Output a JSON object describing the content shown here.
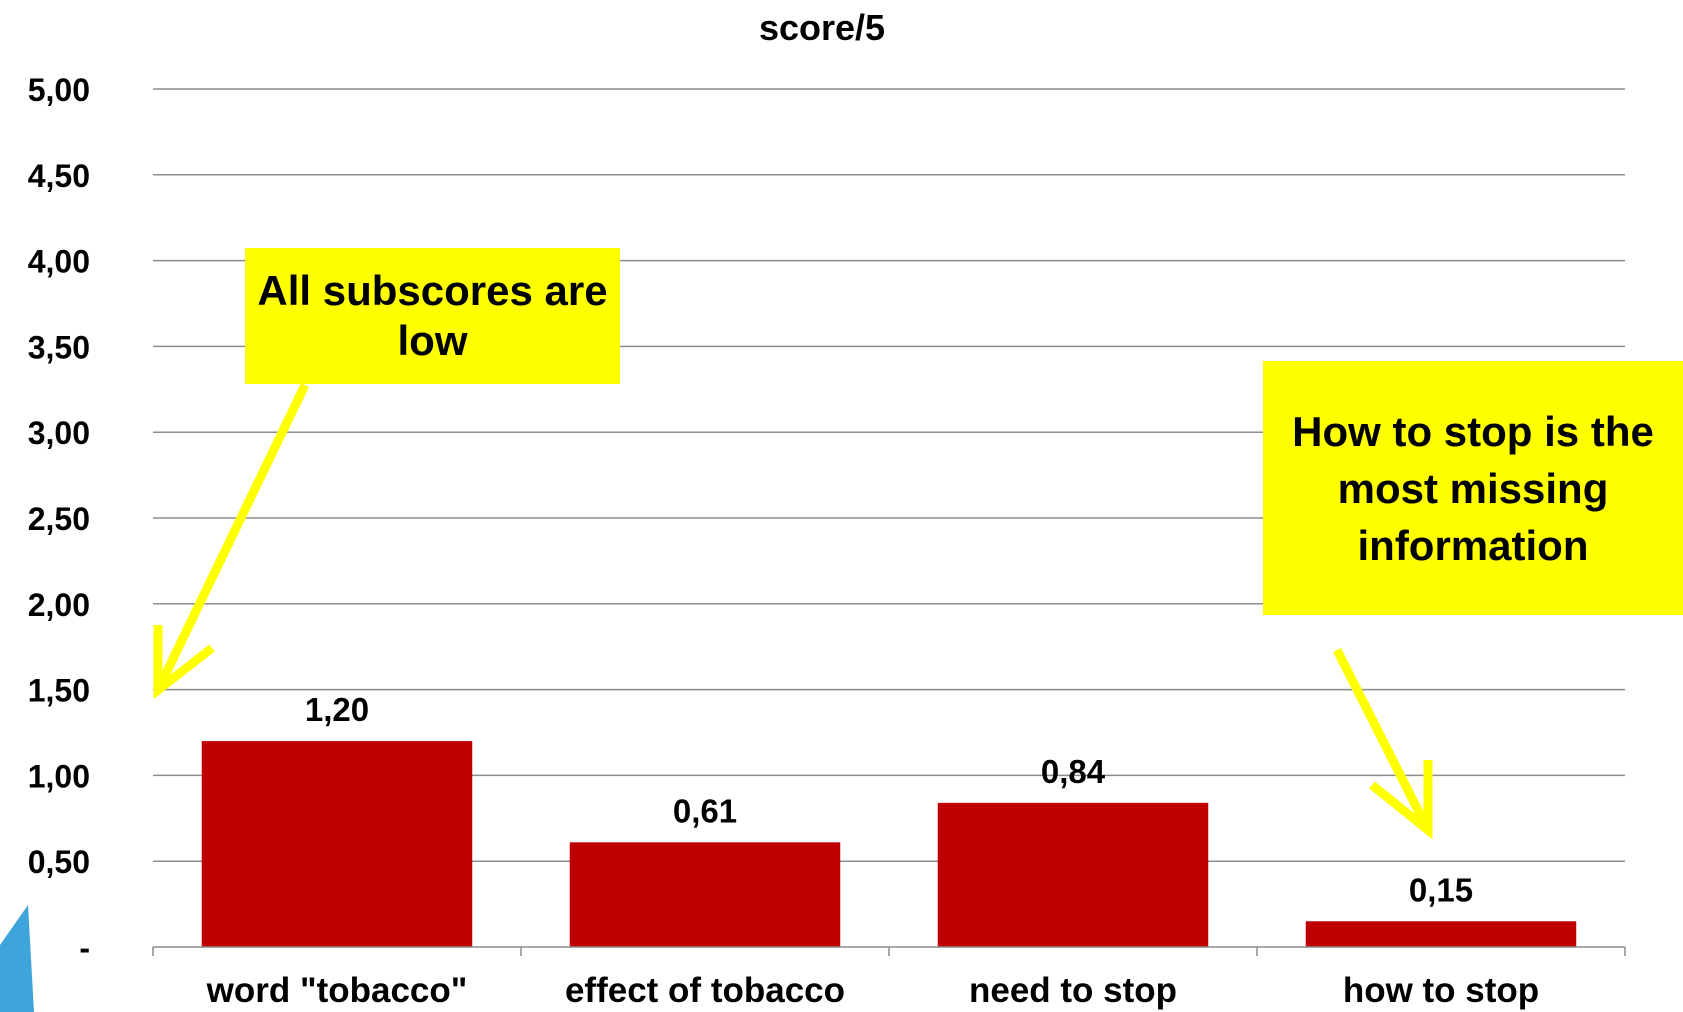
{
  "chart_data": {
    "type": "bar",
    "title": "score/5",
    "categories": [
      "word \"tobacco\"",
      "effect of tobacco",
      "need to stop",
      "how to stop"
    ],
    "values": [
      1.2,
      0.61,
      0.84,
      0.15
    ],
    "value_labels": [
      "1,20",
      "0,61",
      "0,84",
      "0,15"
    ],
    "ylim": [
      0,
      5
    ],
    "yticks": [
      0,
      0.5,
      1.0,
      1.5,
      2.0,
      2.5,
      3.0,
      3.5,
      4.0,
      4.5,
      5.0
    ],
    "ytick_labels": [
      "-",
      "0,50",
      "1,00",
      "1,50",
      "2,00",
      "2,50",
      "3,00",
      "3,50",
      "4,00",
      "4,50",
      "5,00"
    ],
    "grid": true,
    "legend": "none",
    "bar_color": "#c00000",
    "annotations": [
      {
        "text": "All subscores are low",
        "points_to": "word \"tobacco\""
      },
      {
        "text": "How to stop is the most missing information",
        "points_to": "how to stop"
      }
    ],
    "annotation_bg_color": "#ffff00"
  }
}
